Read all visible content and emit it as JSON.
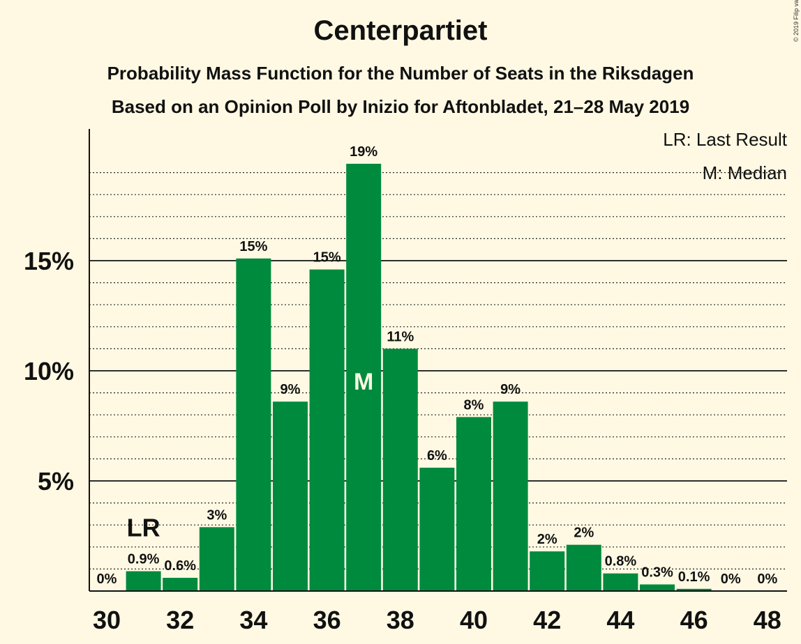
{
  "title": "Centerpartiet",
  "subtitle": "Probability Mass Function for the Number of Seats in the Riksdagen",
  "subtitle2": "Based on an Opinion Poll by Inizio for Aftonbladet, 21–28 May 2019",
  "copyright": "© 2019 Filip van Laenen",
  "colors": {
    "bar": "#008a3e",
    "background": "#fff9e3",
    "text": "#111111"
  },
  "chart_data": {
    "type": "bar",
    "title": "Centerpartiet",
    "xlabel": "",
    "ylabel": "",
    "x": [
      30,
      31,
      32,
      33,
      34,
      35,
      36,
      37,
      38,
      39,
      40,
      41,
      42,
      43,
      44,
      45,
      46,
      47,
      48
    ],
    "values": [
      0,
      0.9,
      0.6,
      2.9,
      15.1,
      8.6,
      14.6,
      19.4,
      11.0,
      5.6,
      7.9,
      8.6,
      1.8,
      2.1,
      0.8,
      0.3,
      0.1,
      0,
      0
    ],
    "data_labels": [
      "0%",
      "0.9%",
      "0.6%",
      "3%",
      "15%",
      "9%",
      "15%",
      "19%",
      "11%",
      "6%",
      "8%",
      "9%",
      "2%",
      "2%",
      "0.8%",
      "0.3%",
      "0.1%",
      "0%",
      "0%"
    ],
    "xticks": [
      "30",
      "32",
      "34",
      "36",
      "38",
      "40",
      "42",
      "44",
      "46",
      "48"
    ],
    "yticks": [
      {
        "value": 5,
        "label": "5%"
      },
      {
        "value": 10,
        "label": "10%"
      },
      {
        "value": 15,
        "label": "15%"
      }
    ],
    "ylim": [
      0,
      21
    ],
    "grid": true,
    "last_result": {
      "seats": 31,
      "label": "LR"
    },
    "median": {
      "seats": 37,
      "label": "M"
    },
    "legend": [
      {
        "text": "LR: Last Result"
      },
      {
        "text": "M: Median"
      }
    ],
    "legend_position": "top-right"
  }
}
